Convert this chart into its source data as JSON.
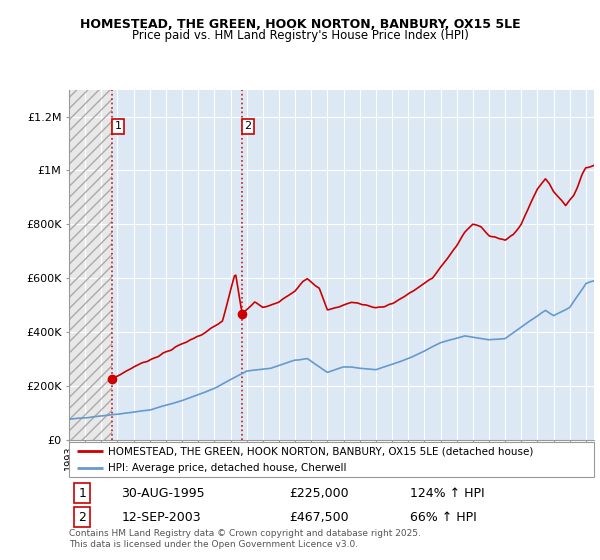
{
  "title": "HOMESTEAD, THE GREEN, HOOK NORTON, BANBURY, OX15 5LE",
  "subtitle": "Price paid vs. HM Land Registry's House Price Index (HPI)",
  "legend_line1": "HOMESTEAD, THE GREEN, HOOK NORTON, BANBURY, OX15 5LE (detached house)",
  "legend_line2": "HPI: Average price, detached house, Cherwell",
  "footnote": "Contains HM Land Registry data © Crown copyright and database right 2025.\nThis data is licensed under the Open Government Licence v3.0.",
  "sale1_label": "1",
  "sale1_date": "30-AUG-1995",
  "sale1_price": "£225,000",
  "sale1_hpi": "124% ↑ HPI",
  "sale2_label": "2",
  "sale2_date": "12-SEP-2003",
  "sale2_price": "£467,500",
  "sale2_hpi": "66% ↑ HPI",
  "property_color": "#cc0000",
  "hpi_color": "#6699cc",
  "background_color": "#ffffff",
  "plot_bg_color": "#dce9f5",
  "hatch_bg_color": "#e8e8e8",
  "ylim": [
    0,
    1300000
  ],
  "yticks": [
    0,
    200000,
    400000,
    600000,
    800000,
    1000000,
    1200000
  ],
  "ytick_labels": [
    "£0",
    "£200K",
    "£400K",
    "£600K",
    "£800K",
    "£1M",
    "£1.2M"
  ],
  "sale1_x": 1995.66,
  "sale1_y": 225000,
  "sale2_x": 2003.71,
  "sale2_y": 467500,
  "xmin": 1993.0,
  "xmax": 2025.5
}
